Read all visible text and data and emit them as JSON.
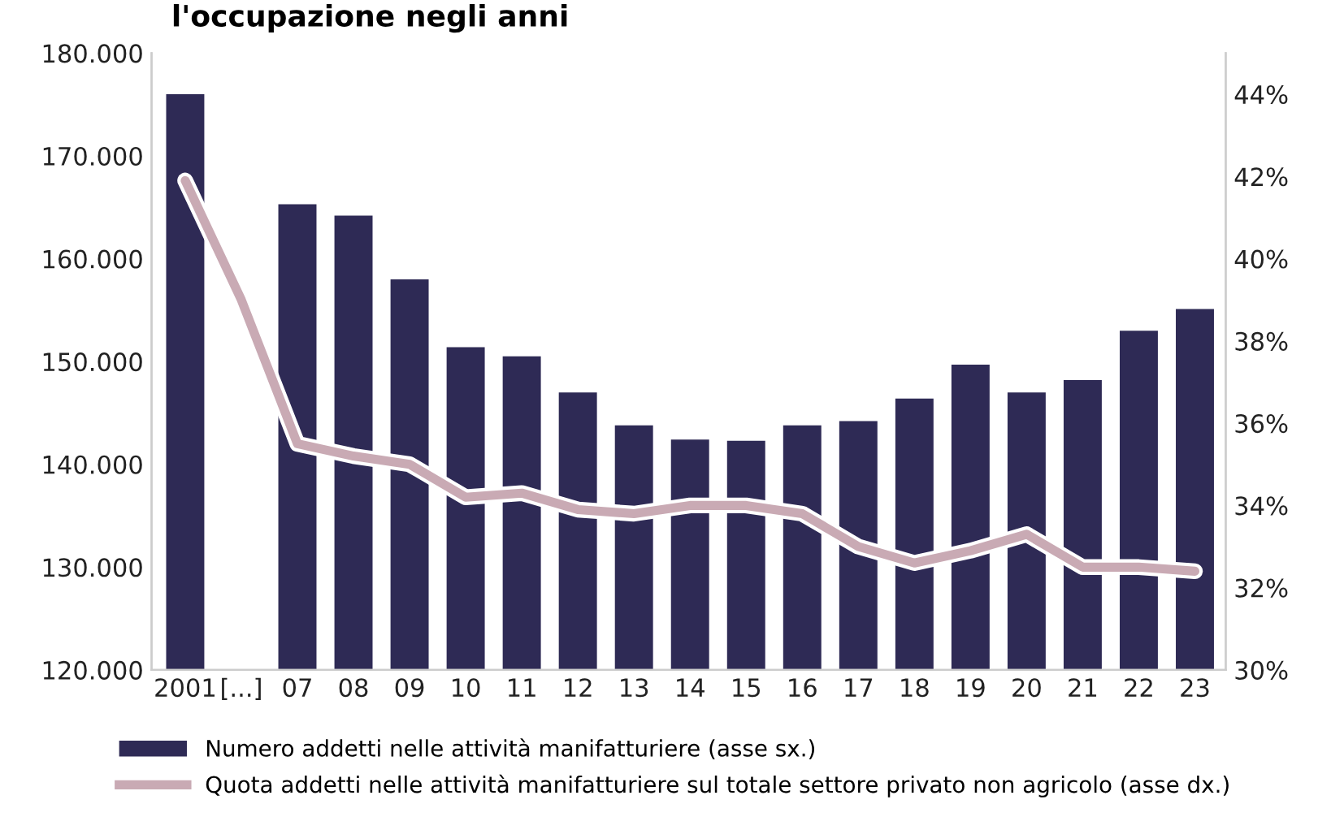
{
  "chart_data": {
    "type": "bar",
    "title": "l'occupazione negli anni",
    "categories": [
      "2001",
      "[...]",
      "07",
      "08",
      "09",
      "10",
      "11",
      "12",
      "13",
      "14",
      "15",
      "16",
      "17",
      "18",
      "19",
      "20",
      "21",
      "22",
      "23"
    ],
    "series": [
      {
        "name": "Numero addetti nelle attività manifatturiere (asse sx.)",
        "color": "#2e2a55",
        "values": [
          176000,
          null,
          165300,
          164200,
          158000,
          151400,
          150500,
          147000,
          143800,
          142400,
          142300,
          143800,
          144200,
          146400,
          149700,
          147000,
          148200,
          153000,
          155100
        ]
      },
      {
        "name": "Quota addetti nelle attività manifatturiere sul totale settore privato non agricolo (asse dx.)",
        "type": "line",
        "axis": "y2",
        "color": "#c9aab4",
        "values": [
          41.9,
          39.0,
          35.5,
          35.2,
          35.0,
          34.2,
          34.3,
          33.9,
          33.8,
          34.0,
          34.0,
          33.8,
          33.0,
          32.6,
          32.9,
          33.3,
          32.5,
          32.5,
          32.4
        ]
      }
    ],
    "ylim": [
      120000,
      180000
    ],
    "yticks": [
      {
        "value": 120000,
        "label": "120.000"
      },
      {
        "value": 130000,
        "label": "130.000"
      },
      {
        "value": 140000,
        "label": "140.000"
      },
      {
        "value": 150000,
        "label": "150.000"
      },
      {
        "value": 160000,
        "label": "160.000"
      },
      {
        "value": 170000,
        "label": "170.000"
      },
      {
        "value": 180000,
        "label": "180.000"
      }
    ],
    "y2lim": [
      30,
      45
    ],
    "y2ticks": [
      {
        "value": 30,
        "label": "30%"
      },
      {
        "value": 32,
        "label": "32%"
      },
      {
        "value": 34,
        "label": "34%"
      },
      {
        "value": 36,
        "label": "36%"
      },
      {
        "value": 38,
        "label": "38%"
      },
      {
        "value": 40,
        "label": "40%"
      },
      {
        "value": 42,
        "label": "42%"
      },
      {
        "value": 44,
        "label": "44%"
      }
    ],
    "grid": false,
    "legend": "bottom",
    "line_style": "solid",
    "marker": "none"
  }
}
